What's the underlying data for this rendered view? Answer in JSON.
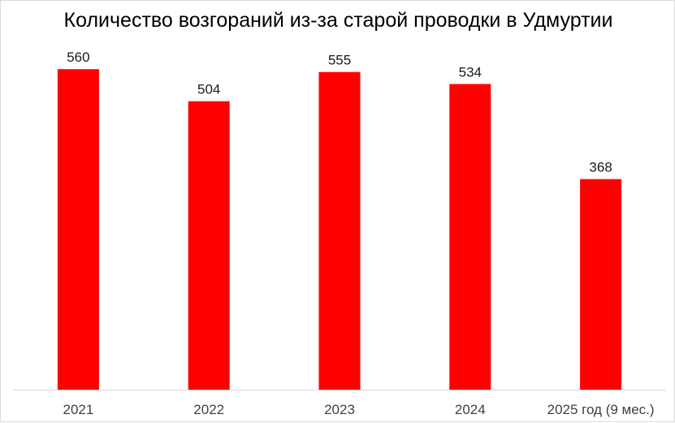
{
  "chart_data": {
    "type": "bar",
    "title": "Количество возгораний из-за старой проводки в Удмуртии",
    "categories": [
      "2021",
      "2022",
      "2023",
      "2024",
      "2025 год (9 мес.)"
    ],
    "values": [
      560,
      504,
      555,
      534,
      368
    ],
    "xlabel": "",
    "ylabel": "",
    "ylim": [
      0,
      600
    ],
    "grid": false,
    "legend": "none",
    "colors": {
      "bar": "#ff0000",
      "axis": "#d9d9d9"
    }
  }
}
